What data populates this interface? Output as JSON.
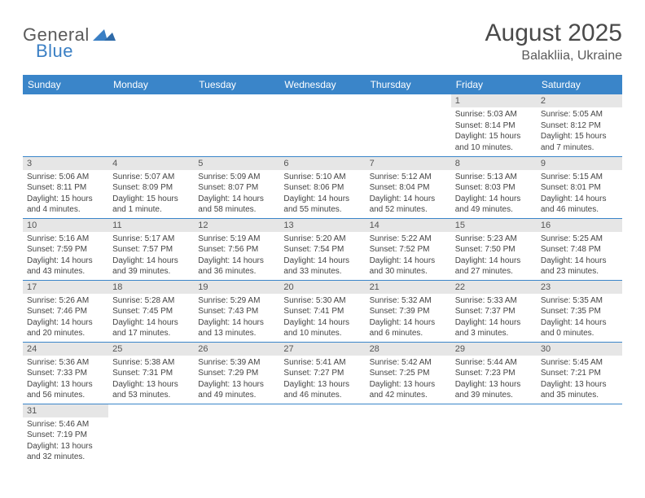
{
  "logo": {
    "part1": "General",
    "part2": "Blue"
  },
  "title": "August 2025",
  "location": "Balakliia, Ukraine",
  "colors": {
    "header_bg": "#3a85c9",
    "header_fg": "#ffffff",
    "daynum_bg": "#e6e6e6",
    "row_border": "#3a85c9",
    "logo_blue": "#3a7fc4"
  },
  "weekdays": [
    "Sunday",
    "Monday",
    "Tuesday",
    "Wednesday",
    "Thursday",
    "Friday",
    "Saturday"
  ],
  "weeks": [
    [
      null,
      null,
      null,
      null,
      null,
      {
        "n": "1",
        "sr": "Sunrise: 5:03 AM",
        "ss": "Sunset: 8:14 PM",
        "dl": "Daylight: 15 hours and 10 minutes."
      },
      {
        "n": "2",
        "sr": "Sunrise: 5:05 AM",
        "ss": "Sunset: 8:12 PM",
        "dl": "Daylight: 15 hours and 7 minutes."
      }
    ],
    [
      {
        "n": "3",
        "sr": "Sunrise: 5:06 AM",
        "ss": "Sunset: 8:11 PM",
        "dl": "Daylight: 15 hours and 4 minutes."
      },
      {
        "n": "4",
        "sr": "Sunrise: 5:07 AM",
        "ss": "Sunset: 8:09 PM",
        "dl": "Daylight: 15 hours and 1 minute."
      },
      {
        "n": "5",
        "sr": "Sunrise: 5:09 AM",
        "ss": "Sunset: 8:07 PM",
        "dl": "Daylight: 14 hours and 58 minutes."
      },
      {
        "n": "6",
        "sr": "Sunrise: 5:10 AM",
        "ss": "Sunset: 8:06 PM",
        "dl": "Daylight: 14 hours and 55 minutes."
      },
      {
        "n": "7",
        "sr": "Sunrise: 5:12 AM",
        "ss": "Sunset: 8:04 PM",
        "dl": "Daylight: 14 hours and 52 minutes."
      },
      {
        "n": "8",
        "sr": "Sunrise: 5:13 AM",
        "ss": "Sunset: 8:03 PM",
        "dl": "Daylight: 14 hours and 49 minutes."
      },
      {
        "n": "9",
        "sr": "Sunrise: 5:15 AM",
        "ss": "Sunset: 8:01 PM",
        "dl": "Daylight: 14 hours and 46 minutes."
      }
    ],
    [
      {
        "n": "10",
        "sr": "Sunrise: 5:16 AM",
        "ss": "Sunset: 7:59 PM",
        "dl": "Daylight: 14 hours and 43 minutes."
      },
      {
        "n": "11",
        "sr": "Sunrise: 5:17 AM",
        "ss": "Sunset: 7:57 PM",
        "dl": "Daylight: 14 hours and 39 minutes."
      },
      {
        "n": "12",
        "sr": "Sunrise: 5:19 AM",
        "ss": "Sunset: 7:56 PM",
        "dl": "Daylight: 14 hours and 36 minutes."
      },
      {
        "n": "13",
        "sr": "Sunrise: 5:20 AM",
        "ss": "Sunset: 7:54 PM",
        "dl": "Daylight: 14 hours and 33 minutes."
      },
      {
        "n": "14",
        "sr": "Sunrise: 5:22 AM",
        "ss": "Sunset: 7:52 PM",
        "dl": "Daylight: 14 hours and 30 minutes."
      },
      {
        "n": "15",
        "sr": "Sunrise: 5:23 AM",
        "ss": "Sunset: 7:50 PM",
        "dl": "Daylight: 14 hours and 27 minutes."
      },
      {
        "n": "16",
        "sr": "Sunrise: 5:25 AM",
        "ss": "Sunset: 7:48 PM",
        "dl": "Daylight: 14 hours and 23 minutes."
      }
    ],
    [
      {
        "n": "17",
        "sr": "Sunrise: 5:26 AM",
        "ss": "Sunset: 7:46 PM",
        "dl": "Daylight: 14 hours and 20 minutes."
      },
      {
        "n": "18",
        "sr": "Sunrise: 5:28 AM",
        "ss": "Sunset: 7:45 PM",
        "dl": "Daylight: 14 hours and 17 minutes."
      },
      {
        "n": "19",
        "sr": "Sunrise: 5:29 AM",
        "ss": "Sunset: 7:43 PM",
        "dl": "Daylight: 14 hours and 13 minutes."
      },
      {
        "n": "20",
        "sr": "Sunrise: 5:30 AM",
        "ss": "Sunset: 7:41 PM",
        "dl": "Daylight: 14 hours and 10 minutes."
      },
      {
        "n": "21",
        "sr": "Sunrise: 5:32 AM",
        "ss": "Sunset: 7:39 PM",
        "dl": "Daylight: 14 hours and 6 minutes."
      },
      {
        "n": "22",
        "sr": "Sunrise: 5:33 AM",
        "ss": "Sunset: 7:37 PM",
        "dl": "Daylight: 14 hours and 3 minutes."
      },
      {
        "n": "23",
        "sr": "Sunrise: 5:35 AM",
        "ss": "Sunset: 7:35 PM",
        "dl": "Daylight: 14 hours and 0 minutes."
      }
    ],
    [
      {
        "n": "24",
        "sr": "Sunrise: 5:36 AM",
        "ss": "Sunset: 7:33 PM",
        "dl": "Daylight: 13 hours and 56 minutes."
      },
      {
        "n": "25",
        "sr": "Sunrise: 5:38 AM",
        "ss": "Sunset: 7:31 PM",
        "dl": "Daylight: 13 hours and 53 minutes."
      },
      {
        "n": "26",
        "sr": "Sunrise: 5:39 AM",
        "ss": "Sunset: 7:29 PM",
        "dl": "Daylight: 13 hours and 49 minutes."
      },
      {
        "n": "27",
        "sr": "Sunrise: 5:41 AM",
        "ss": "Sunset: 7:27 PM",
        "dl": "Daylight: 13 hours and 46 minutes."
      },
      {
        "n": "28",
        "sr": "Sunrise: 5:42 AM",
        "ss": "Sunset: 7:25 PM",
        "dl": "Daylight: 13 hours and 42 minutes."
      },
      {
        "n": "29",
        "sr": "Sunrise: 5:44 AM",
        "ss": "Sunset: 7:23 PM",
        "dl": "Daylight: 13 hours and 39 minutes."
      },
      {
        "n": "30",
        "sr": "Sunrise: 5:45 AM",
        "ss": "Sunset: 7:21 PM",
        "dl": "Daylight: 13 hours and 35 minutes."
      }
    ],
    [
      {
        "n": "31",
        "sr": "Sunrise: 5:46 AM",
        "ss": "Sunset: 7:19 PM",
        "dl": "Daylight: 13 hours and 32 minutes."
      },
      null,
      null,
      null,
      null,
      null,
      null
    ]
  ]
}
